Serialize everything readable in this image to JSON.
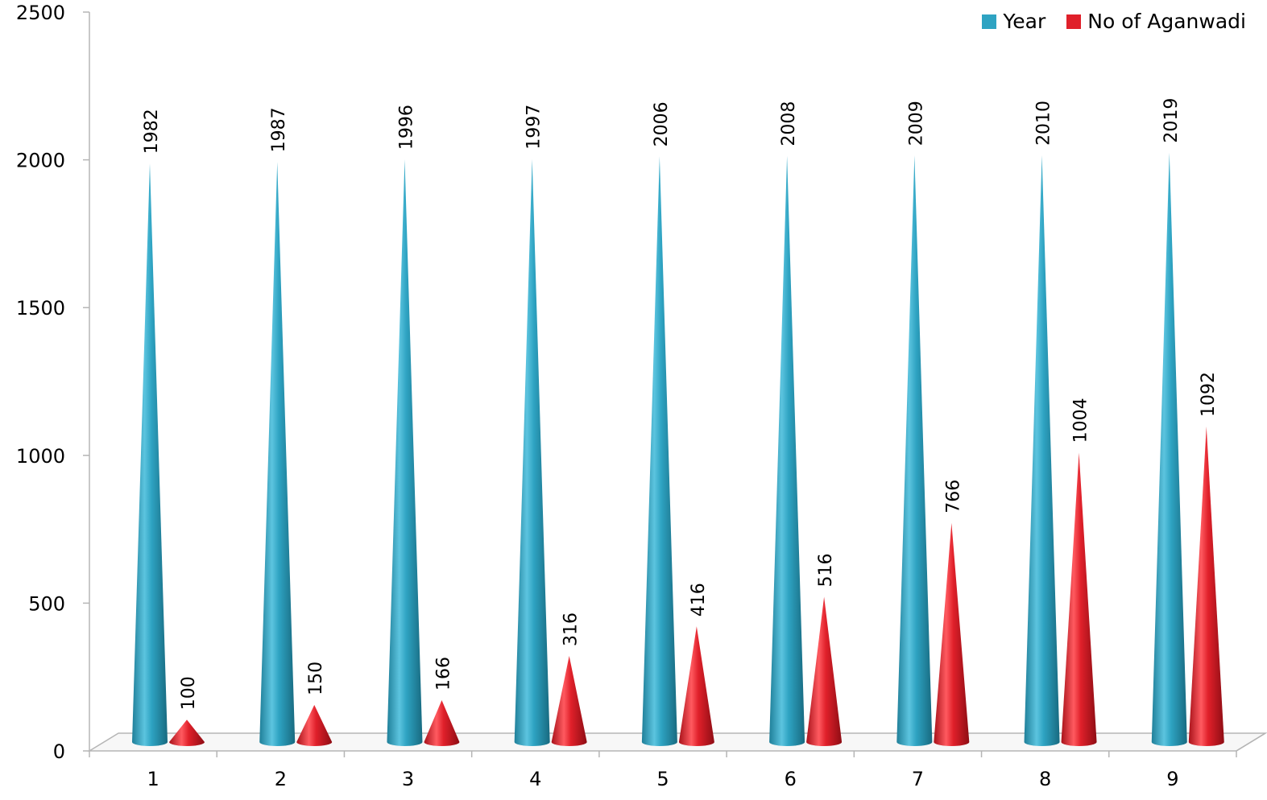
{
  "chart_data": {
    "type": "bar",
    "style": "3d-cone",
    "categories": [
      "1",
      "2",
      "3",
      "4",
      "5",
      "6",
      "7",
      "8",
      "9"
    ],
    "series": [
      {
        "name": "Year",
        "color": "#2ea3c2",
        "values": [
          1982,
          1987,
          1996,
          1997,
          2006,
          2008,
          2009,
          2010,
          2019
        ]
      },
      {
        "name": "No of Aganwadi",
        "color": "#e0202a",
        "values": [
          100,
          150,
          166,
          316,
          416,
          516,
          766,
          1004,
          1092
        ]
      }
    ],
    "title": "",
    "xlabel": "",
    "ylabel": "",
    "ylim": [
      0,
      2500
    ],
    "yticks": [
      "0",
      "500",
      "1000",
      "1500",
      "2000",
      "2500"
    ],
    "grid": false,
    "legend_position": "top-right",
    "data_labels": "rotated-vertical"
  }
}
